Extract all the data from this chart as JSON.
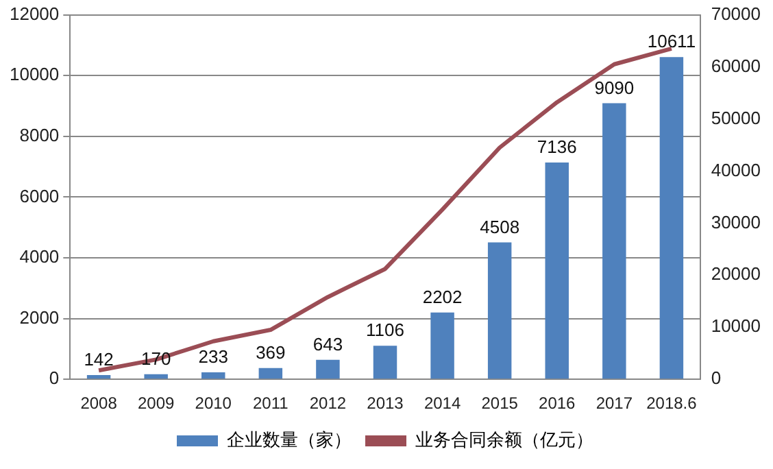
{
  "chart_data": {
    "type": "bar",
    "categories": [
      "2008",
      "2009",
      "2010",
      "2011",
      "2012",
      "2013",
      "2014",
      "2015",
      "2016",
      "2017",
      "2018.6"
    ],
    "series": [
      {
        "name": "企业数量（家）",
        "color": "#4f81bd",
        "values": [
          142,
          170,
          233,
          369,
          643,
          1106,
          2202,
          4508,
          7136,
          9090,
          10611
        ],
        "data_labels": true
      },
      {
        "name": "业务合同余额（亿元）",
        "type": "line",
        "axis": "y2",
        "color": "#9b4d55",
        "values": [
          1700,
          3800,
          7300,
          9500,
          15800,
          21200,
          32600,
          44500,
          53200,
          60500,
          63500
        ]
      }
    ],
    "ylim": [
      0,
      12000
    ],
    "yticks": [
      0,
      2000,
      4000,
      6000,
      8000,
      10000,
      12000
    ],
    "y2lim": [
      0,
      70000
    ],
    "y2ticks": [
      0,
      10000,
      20000,
      30000,
      40000,
      50000,
      60000,
      70000
    ],
    "grid": "y",
    "legend": "bottom",
    "marker": "none",
    "line_style": "solid"
  }
}
